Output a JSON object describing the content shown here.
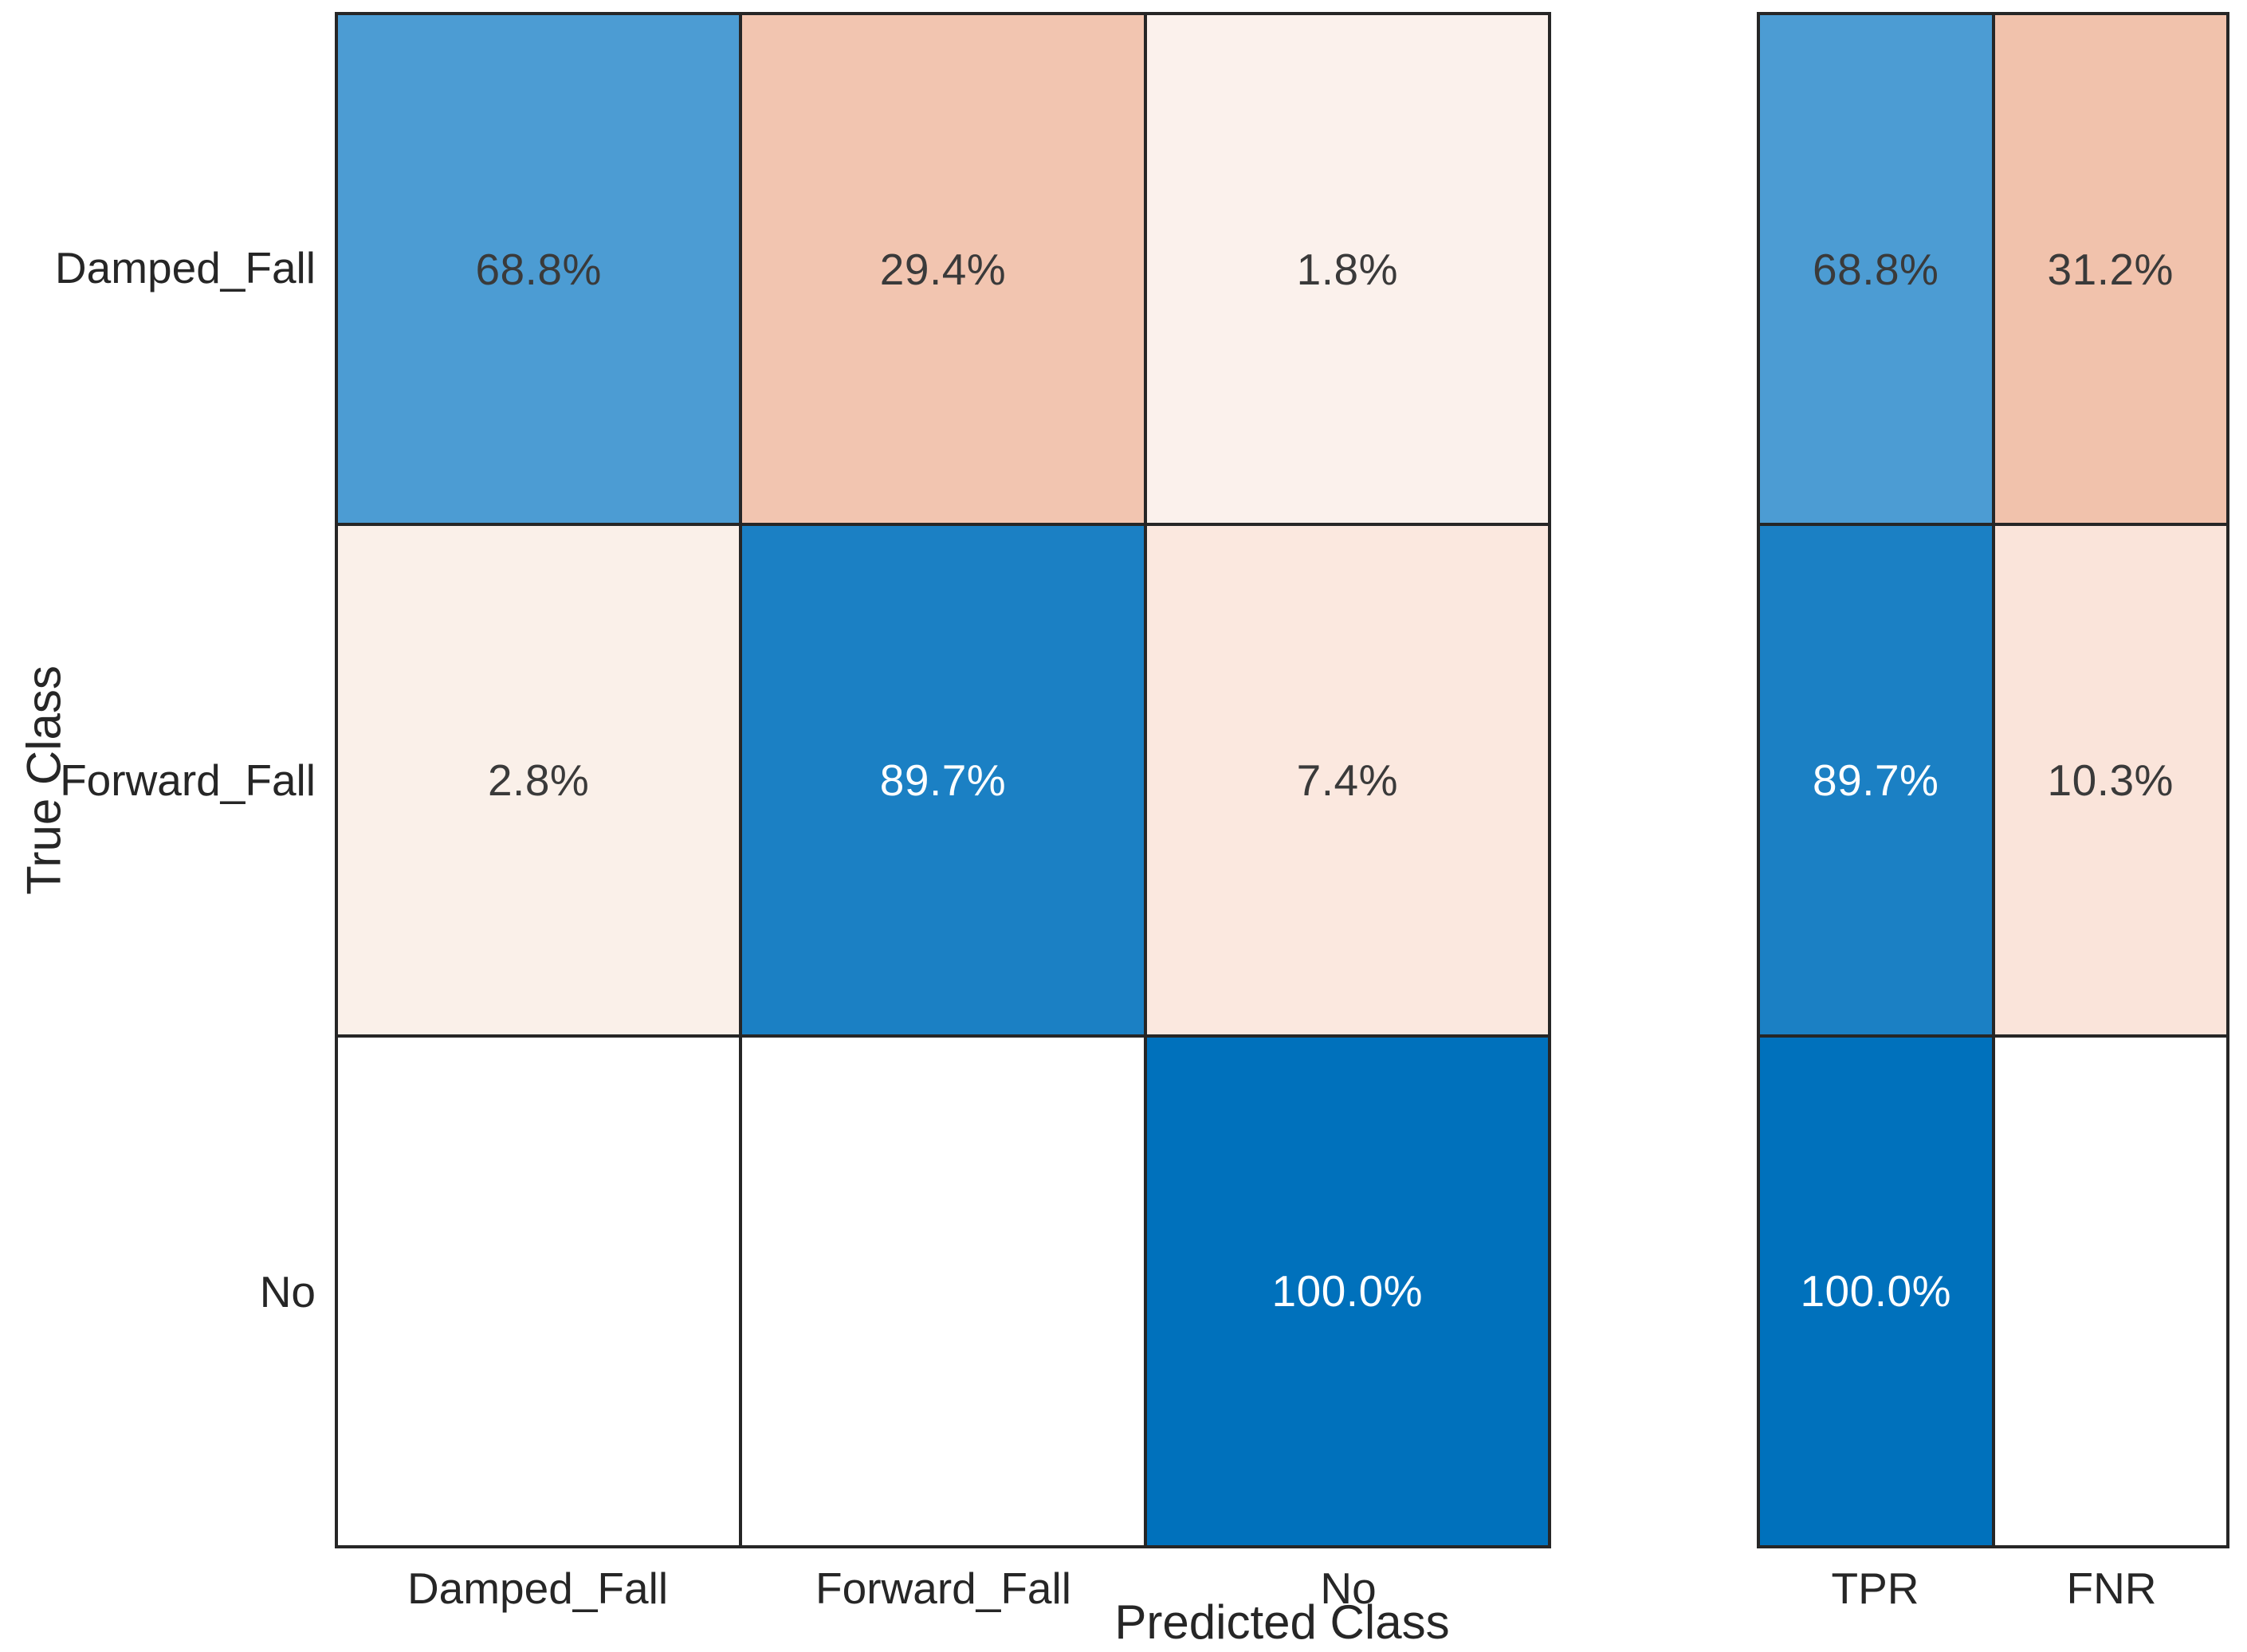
{
  "chart_data": {
    "type": "heatmap",
    "subtype": "confusion_matrix_with_row_summary",
    "title": "",
    "xlabel": "Predicted Class",
    "ylabel": "True Class",
    "x_categories": [
      "Damped_Fall",
      "Forward_Fall",
      "No"
    ],
    "y_categories": [
      "Damped_Fall",
      "Forward_Fall",
      "No"
    ],
    "summary_columns": [
      "TPR",
      "FNR"
    ],
    "values_row_normalized_pct": [
      [
        68.8,
        29.4,
        1.8
      ],
      [
        2.8,
        89.7,
        7.4
      ],
      [
        null,
        null,
        100.0
      ]
    ],
    "summary_values_pct": [
      [
        68.8,
        31.2
      ],
      [
        89.7,
        10.3
      ],
      [
        100.0,
        null
      ]
    ],
    "layout": {
      "grid": "off",
      "legend": "none",
      "axis_line_color": "#262626",
      "background": "#FFFFFF",
      "diagonal_color_max": "#0071BC",
      "offdiagonal_color_max": "#F2C5B0"
    },
    "matrix_cells": [
      [
        {
          "label": "68.8%",
          "bg": "#4C9CD3",
          "fg": "#3A3A3A"
        },
        {
          "label": "29.4%",
          "bg": "#F2C5B0",
          "fg": "#3A3A3A"
        },
        {
          "label": "1.8%",
          "bg": "#FBF1EC",
          "fg": "#3A3A3A"
        }
      ],
      [
        {
          "label": "2.8%",
          "bg": "#FAF0E9",
          "fg": "#3A3A3A"
        },
        {
          "label": "89.7%",
          "bg": "#1B80C4",
          "fg": "#FFFFFF"
        },
        {
          "label": "7.4%",
          "bg": "#FBE8DF",
          "fg": "#3A3A3A"
        }
      ],
      [
        {
          "label": "",
          "bg": "#FFFFFF",
          "fg": "#3A3A3A"
        },
        {
          "label": "",
          "bg": "#FFFFFF",
          "fg": "#3A3A3A"
        },
        {
          "label": "100.0%",
          "bg": "#0071BC",
          "fg": "#FFFFFF"
        }
      ]
    ],
    "summary_cells": [
      [
        {
          "label": "68.8%",
          "bg": "#4C9CD3",
          "fg": "#3A3A3A"
        },
        {
          "label": "31.2%",
          "bg": "#F1C2AC",
          "fg": "#3A3A3A"
        }
      ],
      [
        {
          "label": "89.7%",
          "bg": "#1B80C4",
          "fg": "#FFFFFF"
        },
        {
          "label": "10.3%",
          "bg": "#FAE4DA",
          "fg": "#3A3A3A"
        }
      ],
      [
        {
          "label": "100.0%",
          "bg": "#0071BC",
          "fg": "#FFFFFF"
        },
        {
          "label": "",
          "bg": "#FFFFFF",
          "fg": "#3A3A3A"
        }
      ]
    ]
  }
}
